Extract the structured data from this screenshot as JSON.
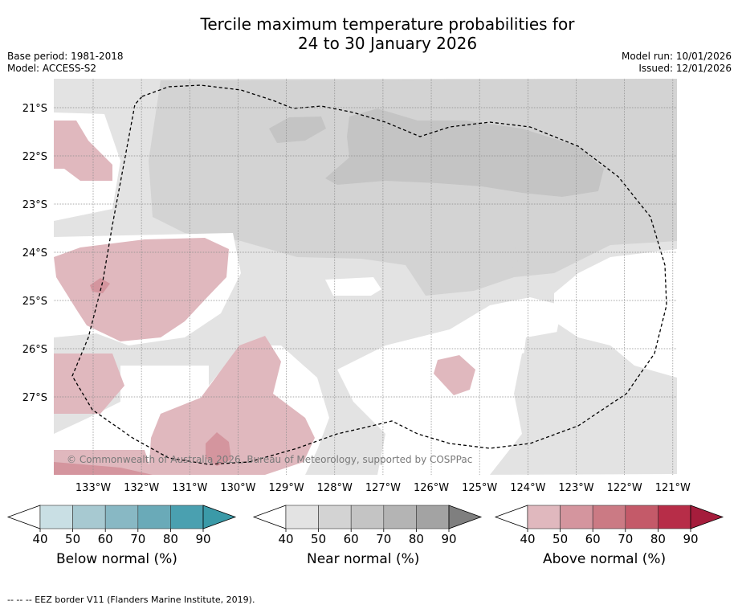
{
  "title_line1": "Tercile maximum temperature probabilities for",
  "title_line2": "24 to 30 January 2026",
  "base_period": "Base period: 1981-2018",
  "model": "Model: ACCESS-S2",
  "model_run": "Model run: 10/01/2026",
  "issued": "Issued: 12/01/2026",
  "credit": "© Commonwealth of Australia 2026, Bureau of Meteorology, supported by COSPPac",
  "footnote": "--  --  -- EEZ border V11 (Flanders Marine Institute, 2019).",
  "lat_labels": [
    "21°S",
    "22°S",
    "23°S",
    "24°S",
    "25°S",
    "26°S",
    "27°S"
  ],
  "lon_labels": [
    "133°W",
    "132°W",
    "131°W",
    "130°W",
    "129°W",
    "128°W",
    "127°W",
    "126°W",
    "125°W",
    "124°W",
    "123°W",
    "122°W",
    "121°W"
  ],
  "colorbars": [
    {
      "title": "Below normal (%)",
      "ticks": [
        "40",
        "50",
        "60",
        "70",
        "80",
        "90"
      ],
      "colors": [
        "#ffffff",
        "#c9dfe4",
        "#a7c9d1",
        "#88b8c4",
        "#6aaab8",
        "#4aa0b0",
        "#3b9aa8"
      ]
    },
    {
      "title": "Near normal (%)",
      "ticks": [
        "40",
        "50",
        "60",
        "70",
        "80",
        "90"
      ],
      "colors": [
        "#ffffff",
        "#e3e3e3",
        "#d3d3d3",
        "#c4c4c4",
        "#b4b4b4",
        "#a3a3a3",
        "#7f7f7f"
      ]
    },
    {
      "title": "Above normal (%)",
      "ticks": [
        "40",
        "50",
        "60",
        "70",
        "80",
        "90"
      ],
      "colors": [
        "#ffffff",
        "#e0b8be",
        "#d4959e",
        "#cb7a84",
        "#c45a69",
        "#b72d48",
        "#a51d3c"
      ]
    }
  ]
}
